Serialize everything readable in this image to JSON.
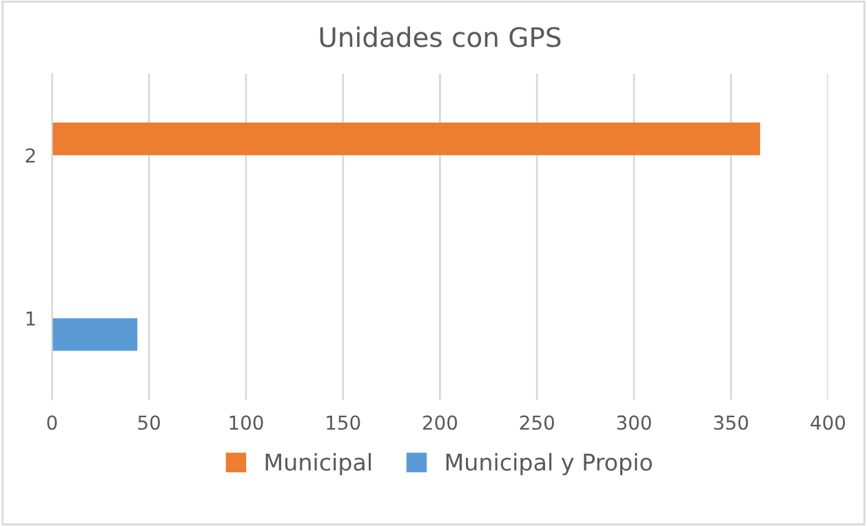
{
  "chart_data": {
    "type": "bar",
    "orientation": "horizontal",
    "title": "Unidades con GPS",
    "categories": [
      "2",
      "1"
    ],
    "series": [
      {
        "name": "Municipal",
        "color": "#ed7d31",
        "values": [
          365,
          null
        ]
      },
      {
        "name": "Municipal y Propio",
        "color": "#5b9bd5",
        "values": [
          null,
          44
        ]
      }
    ],
    "xlim": [
      0,
      400
    ],
    "xticks": [
      0,
      50,
      100,
      150,
      200,
      250,
      300,
      350,
      400
    ],
    "grid": "x",
    "legend": "bottom"
  }
}
